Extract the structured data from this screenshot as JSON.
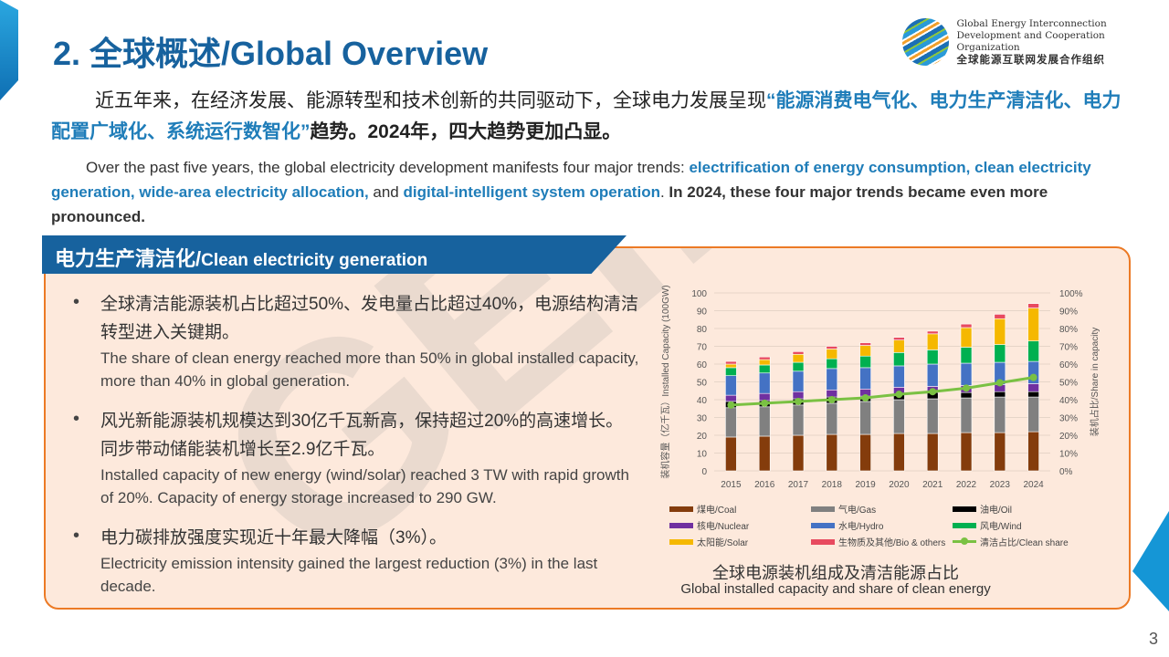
{
  "header": {
    "title": "2. 全球概述/Global Overview",
    "org_en_1": "Global Energy Interconnection",
    "org_en_2": "Development and Cooperation Organization",
    "org_cn": "全球能源互联网发展合作组织",
    "watermark": "GEIDCO"
  },
  "intro_cn": {
    "t1": "近五年来，在经济发展、能源转型和技术创新的共同驱动下，全球电力发展呈现",
    "h1": "“能源消费电气化、电力生产清洁化、电力配置广域化、系统运行数智化”",
    "t2": "趋势。2024年，四大趋势更加凸显。"
  },
  "intro_en": {
    "t1": "Over the past five years, the global electricity development manifests four major trends: ",
    "h1": "electrification of energy consumption, clean electricity generation, wide-area electricity allocation,",
    "t2": " and ",
    "h2": "digital-intelligent system operation",
    "t3": ". ",
    "b1": "In 2024, these four major trends became even more pronounced."
  },
  "section": {
    "title_cn": "电力生产清洁化/",
    "title_en": "Clean electricity generation"
  },
  "bullets": [
    {
      "cn": "全球清洁能源装机占比超过50%、发电量占比超过40%，电源结构清洁转型进入关键期。",
      "en": "The share of clean energy reached more than 50% in global installed capacity, more than 40% in global generation."
    },
    {
      "cn": "风光新能源装机规模达到30亿千瓦新高，保持超过20%的高速增长。同步带动储能装机增长至2.9亿千瓦。",
      "en": "Installed capacity of new energy (wind/solar) reached 3 TW with rapid growth of 20%. Capacity of energy storage increased to 290 GW."
    },
    {
      "cn": "电力碳排放强度实现近十年最大降幅（3%）。",
      "en": "Electricity emission intensity gained the largest reduction (3%) in the last decade."
    }
  ],
  "chart_data": {
    "type": "bar",
    "stacked": true,
    "title_cn": "全球电源装机组成及清洁能源占比",
    "title_en": "Global installed capacity and share of clean energy",
    "ylabel": "装机容量（亿千瓦）Installed Capacity (100GW)",
    "y2label": "装机占比/Share in capacity",
    "ylim": [
      0,
      100
    ],
    "y2lim": [
      0,
      100
    ],
    "yticks": [
      "0",
      "10",
      "20",
      "30",
      "40",
      "50",
      "60",
      "70",
      "80",
      "90",
      "100"
    ],
    "y2ticks": [
      "0%",
      "10%",
      "20%",
      "30%",
      "40%",
      "50%",
      "60%",
      "70%",
      "80%",
      "90%",
      "100%"
    ],
    "categories": [
      "2015",
      "2016",
      "2017",
      "2018",
      "2019",
      "2020",
      "2021",
      "2022",
      "2023",
      "2024"
    ],
    "series": [
      {
        "name": "煤电/Coal",
        "color": "#843c0c",
        "values": [
          19,
          19.5,
          20,
          20.5,
          20.5,
          21,
          21,
          21.5,
          21.5,
          22
        ]
      },
      {
        "name": "气电/Gas",
        "color": "#808080",
        "values": [
          16.5,
          16.5,
          17,
          17.5,
          18.5,
          19,
          19.5,
          19.5,
          20,
          19.5
        ]
      },
      {
        "name": "油电/Oil",
        "color": "#000000",
        "values": [
          3.5,
          3.5,
          3.5,
          3.5,
          3,
          3,
          3.5,
          3,
          3,
          3
        ]
      },
      {
        "name": "核电/Nuclear",
        "color": "#7030a0",
        "values": [
          3.5,
          4,
          4,
          4,
          4,
          4,
          3.5,
          4,
          4,
          4.5
        ]
      },
      {
        "name": "水电/Hydro",
        "color": "#4472c4",
        "values": [
          11,
          11.5,
          11.5,
          12,
          12,
          12,
          12.5,
          12.5,
          12.5,
          12.5
        ]
      },
      {
        "name": "风电/Wind",
        "color": "#00b050",
        "values": [
          4.5,
          4.5,
          5,
          5.5,
          6.5,
          7.5,
          8,
          9,
          10,
          11.5
        ]
      },
      {
        "name": "太阳能/Solar",
        "color": "#f5b800",
        "values": [
          2,
          3,
          4.5,
          5.5,
          6,
          7,
          9,
          11,
          14.5,
          18.5
        ]
      },
      {
        "name": "生物质及其他/Bio & others",
        "color": "#e84a5f",
        "values": [
          1.5,
          1.5,
          1.5,
          1.5,
          1.5,
          1.5,
          1.5,
          2,
          2.5,
          2.5
        ]
      }
    ],
    "line": {
      "name": "清洁占比/Clean share",
      "color": "#7ac143",
      "axis": "right",
      "values": [
        37,
        38,
        39,
        40,
        41,
        43,
        44.5,
        46.5,
        49.5,
        52.5
      ]
    }
  },
  "page_number": "3"
}
